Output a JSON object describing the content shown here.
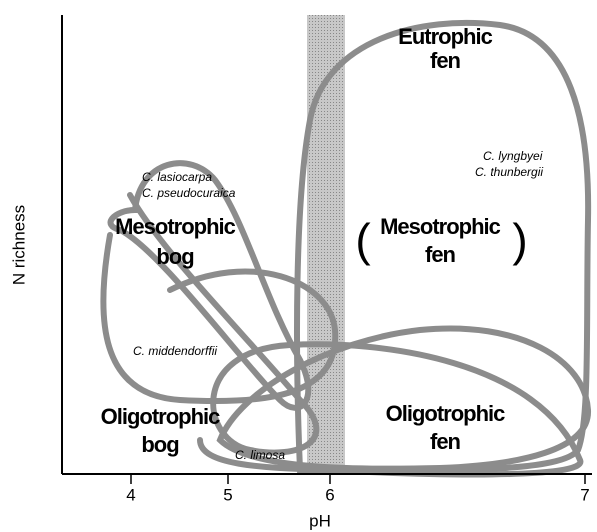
{
  "axes": {
    "x_label": "pH",
    "y_label": "N richness",
    "tick_labels": [
      "4",
      "5",
      "6",
      "7"
    ]
  },
  "regions": [
    {
      "lines": [
        "Eutrophic",
        "fen"
      ]
    },
    {
      "lines": [
        "Mesotrophic",
        "bog"
      ]
    },
    {
      "open": "(",
      "lines": [
        "Mesotrophic",
        "fen"
      ],
      "close": ")"
    },
    {
      "lines": [
        "Oligotrophic",
        "bog"
      ]
    },
    {
      "lines": [
        "Oligotrophic",
        "fen"
      ]
    }
  ],
  "species": [
    "C.  lasiocarpa",
    "C.  pseudocuraica",
    "C.  lyngbyei",
    "C.  thunbergii",
    "C.  middendorffii",
    "C.  limosa"
  ]
}
